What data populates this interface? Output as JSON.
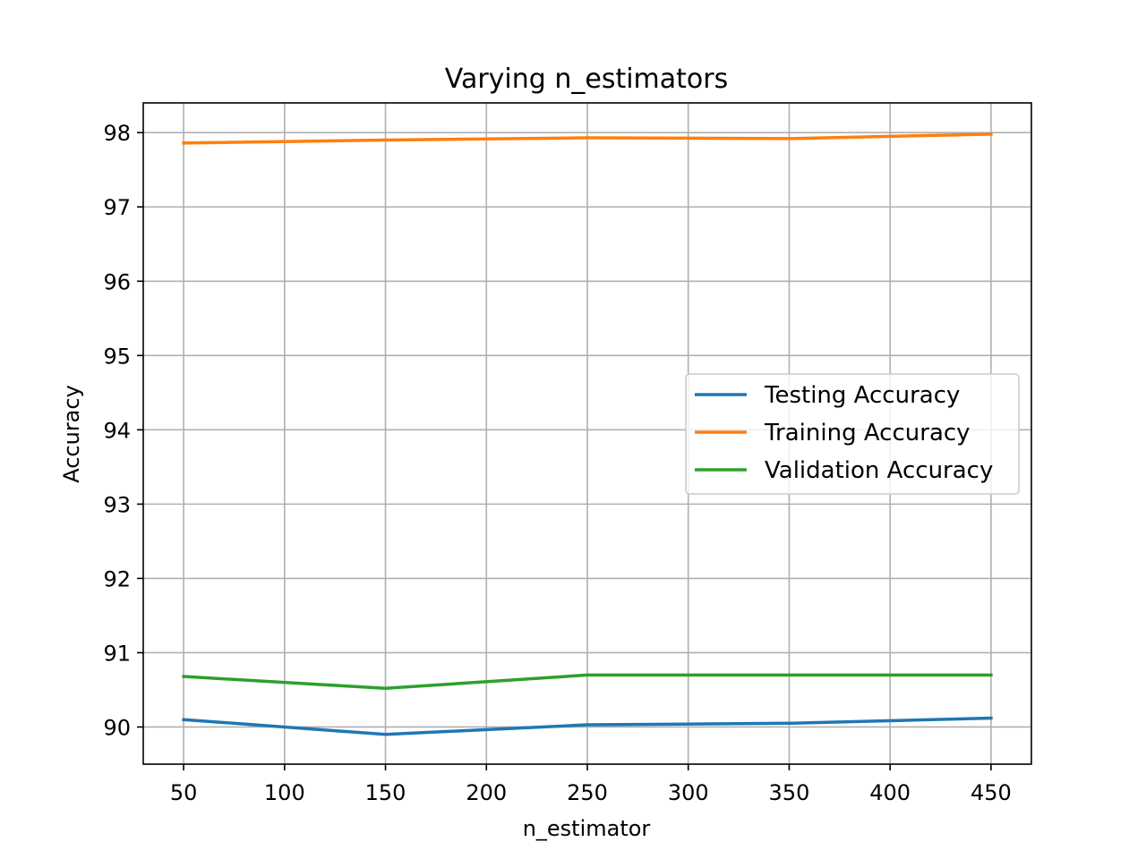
{
  "chart_data": {
    "type": "line",
    "title": "Varying n_estimators",
    "xlabel": "n_estimator",
    "ylabel": "Accuracy",
    "x": [
      50,
      150,
      250,
      350,
      450
    ],
    "xticks": [
      50,
      100,
      150,
      200,
      250,
      300,
      350,
      400,
      450
    ],
    "yticks": [
      90,
      91,
      92,
      93,
      94,
      95,
      96,
      97,
      98
    ],
    "xlim": [
      30,
      470
    ],
    "ylim": [
      89.5,
      98.4
    ],
    "grid": true,
    "legend_position": "center-right",
    "series": [
      {
        "name": "Testing Accuracy",
        "color": "#1f77b4",
        "values": [
          90.1,
          89.9,
          90.03,
          90.05,
          90.12
        ]
      },
      {
        "name": "Training Accuracy",
        "color": "#ff7f0e",
        "values": [
          97.86,
          97.9,
          97.93,
          97.92,
          97.98
        ]
      },
      {
        "name": "Validation Accuracy",
        "color": "#2ca02c",
        "values": [
          90.68,
          90.52,
          90.7,
          90.7,
          90.7
        ]
      }
    ]
  }
}
